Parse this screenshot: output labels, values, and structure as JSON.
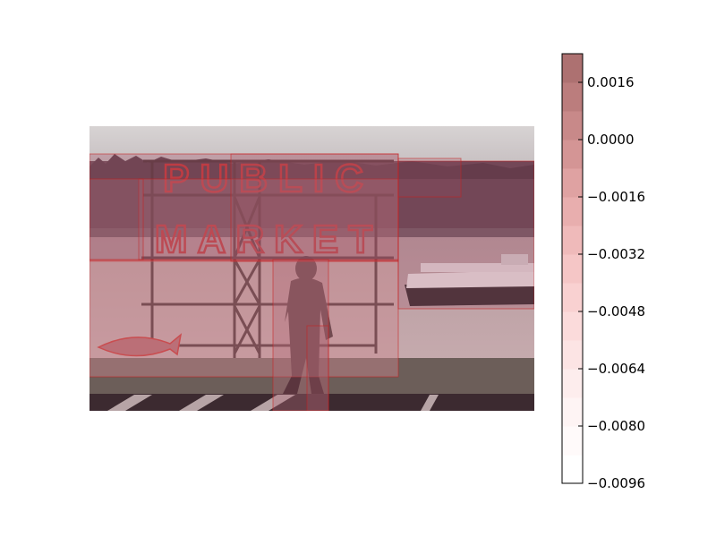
{
  "chart_data": {
    "type": "heatmap",
    "title": "",
    "xlabel": "",
    "ylabel": "",
    "background_photo": {
      "description_icon": "photo-pike-place-public-market-sign",
      "sign_text_line1": "PUBLIC",
      "sign_text_line2": "MARKET"
    },
    "colorbar": {
      "vmin": -0.0096,
      "vmax": 0.0024,
      "ticks": [
        0.0016,
        0.0,
        -0.0016,
        -0.0032,
        -0.0048,
        -0.0064,
        -0.008,
        -0.0096
      ],
      "tick_labels": [
        "0.0016",
        "0.0000",
        "−0.0016",
        "−0.0032",
        "−0.0048",
        "−0.0064",
        "−0.0080",
        "−0.0096"
      ],
      "levels": [
        -0.0096,
        -0.0088,
        -0.008,
        -0.0072,
        -0.0064,
        -0.0056,
        -0.0048,
        -0.004,
        -0.0032,
        -0.0024,
        -0.0016,
        -0.0008,
        0.0,
        0.0008,
        0.0016,
        0.0024
      ],
      "colors": [
        "#ffffff",
        "#fffafa",
        "#fef4f4",
        "#fdeded",
        "#fce4e4",
        "#fbdbdb",
        "#f9d1d1",
        "#f5c6c6",
        "#efbaba",
        "#e8aeae",
        "#dfa2a2",
        "#d49595",
        "#c88989",
        "#bb7d7d",
        "#ad7171"
      ]
    },
    "overlay_colors": {
      "box_stroke": "#c81e1e",
      "sign_neon": "#c81e1e"
    }
  }
}
